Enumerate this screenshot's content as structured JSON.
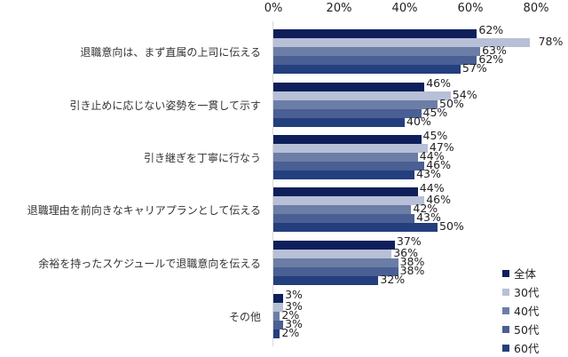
{
  "chart_data": {
    "type": "bar",
    "orientation": "horizontal",
    "title": "",
    "xlabel": "",
    "ylabel": "",
    "xlim": [
      0,
      80
    ],
    "x_ticks": [
      "0%",
      "20%",
      "40%",
      "60%",
      "80%"
    ],
    "grid": false,
    "legend_position": "bottom-right",
    "categories": [
      "退職意向は、まず直属の上司に伝える",
      "引き止めに応じない姿勢を一貫して示す",
      "引き継ぎを丁寧に行なう",
      "退職理由を前向きなキャリアプランとして伝える",
      "余裕を持ったスケジュールで退職意向を伝える",
      "その他"
    ],
    "series": [
      {
        "name": "全体",
        "color": "#0e1f5b",
        "values": [
          62,
          46,
          45,
          44,
          37,
          3
        ]
      },
      {
        "name": "30代",
        "color": "#b7c0d6",
        "values": [
          78,
          54,
          47,
          46,
          36,
          3
        ]
      },
      {
        "name": "40代",
        "color": "#6c7ea6",
        "values": [
          63,
          50,
          44,
          42,
          38,
          2
        ]
      },
      {
        "name": "50代",
        "color": "#4a5f93",
        "values": [
          62,
          45,
          46,
          43,
          38,
          3
        ]
      },
      {
        "name": "60代",
        "color": "#243f7d",
        "values": [
          57,
          40,
          43,
          50,
          32,
          2
        ]
      }
    ],
    "value_suffix": "%"
  }
}
